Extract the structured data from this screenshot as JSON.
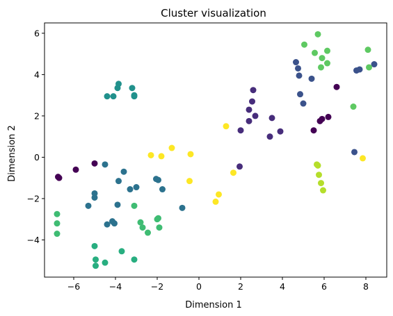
{
  "chart_data": {
    "type": "scatter",
    "title": "Cluster visualization",
    "xlabel": "Dimension 1",
    "ylabel": "Dimension 2",
    "xlim": [
      -7.4,
      9.0
    ],
    "ylim": [
      -5.8,
      6.5
    ],
    "xticks": [
      -6,
      -4,
      -2,
      0,
      2,
      4,
      6,
      8
    ],
    "yticks": [
      -4,
      -2,
      0,
      2,
      4,
      6
    ],
    "grid": false,
    "legend": "none",
    "clusters": [
      {
        "color": "#440154",
        "points": [
          [
            -6.7,
            -1.0
          ],
          [
            -6.75,
            -0.95
          ],
          [
            -5.9,
            -0.6
          ],
          [
            -5.0,
            -0.3
          ],
          [
            5.5,
            1.3
          ],
          [
            5.8,
            1.75
          ],
          [
            5.9,
            1.85
          ],
          [
            6.2,
            1.95
          ],
          [
            6.6,
            3.4
          ]
        ]
      },
      {
        "color": "#472d7b",
        "points": [
          [
            2.6,
            3.25
          ],
          [
            2.55,
            2.7
          ],
          [
            2.7,
            2.0
          ],
          [
            2.4,
            2.3
          ],
          [
            2.4,
            1.75
          ],
          [
            2.0,
            1.3
          ],
          [
            3.4,
            1.0
          ],
          [
            3.9,
            1.25
          ],
          [
            3.5,
            1.9
          ],
          [
            1.95,
            -0.45
          ]
        ]
      },
      {
        "color": "#3b528b",
        "points": [
          [
            4.65,
            4.6
          ],
          [
            4.75,
            4.3
          ],
          [
            4.8,
            3.95
          ],
          [
            4.85,
            3.05
          ],
          [
            5.0,
            2.6
          ],
          [
            5.4,
            3.8
          ],
          [
            7.55,
            4.2
          ],
          [
            7.7,
            4.25
          ],
          [
            8.4,
            4.5
          ],
          [
            7.45,
            0.25
          ]
        ]
      },
      {
        "color": "#2c728e",
        "points": [
          [
            -4.5,
            -0.35
          ],
          [
            -3.6,
            -0.7
          ],
          [
            -3.85,
            -1.15
          ],
          [
            -3.3,
            -1.55
          ],
          [
            -3.0,
            -1.45
          ],
          [
            -1.95,
            -1.1
          ],
          [
            -2.05,
            -1.05
          ],
          [
            -1.75,
            -1.55
          ],
          [
            -0.8,
            -2.45
          ],
          [
            -5.0,
            -1.75
          ],
          [
            -5.0,
            -1.95
          ],
          [
            -5.3,
            -2.35
          ],
          [
            -3.9,
            -2.3
          ],
          [
            -4.4,
            -3.25
          ],
          [
            -4.15,
            -3.1
          ],
          [
            -4.05,
            -3.2
          ]
        ]
      },
      {
        "color": "#21918c",
        "points": [
          [
            -4.4,
            2.95
          ],
          [
            -4.1,
            2.95
          ],
          [
            -3.9,
            3.35
          ],
          [
            -3.85,
            3.55
          ],
          [
            -3.2,
            3.35
          ],
          [
            -3.1,
            2.95
          ],
          [
            -3.1,
            3.0
          ]
        ]
      },
      {
        "color": "#28ae80",
        "points": [
          [
            -5.0,
            -4.3
          ],
          [
            -4.95,
            -4.95
          ],
          [
            -4.95,
            -5.25
          ],
          [
            -4.5,
            -5.1
          ],
          [
            -3.7,
            -4.55
          ],
          [
            -3.1,
            -4.95
          ]
        ]
      },
      {
        "color": "#3fbc73",
        "points": [
          [
            -6.8,
            -2.75
          ],
          [
            -6.8,
            -3.2
          ],
          [
            -6.8,
            -3.7
          ],
          [
            -3.1,
            -2.35
          ],
          [
            -2.8,
            -3.15
          ],
          [
            -2.7,
            -3.4
          ],
          [
            -2.45,
            -3.65
          ],
          [
            -2.0,
            -3.0
          ],
          [
            -1.95,
            -2.95
          ],
          [
            -1.9,
            -3.4
          ]
        ]
      },
      {
        "color": "#5ec962",
        "points": [
          [
            5.05,
            5.45
          ],
          [
            5.7,
            5.95
          ],
          [
            5.55,
            5.05
          ],
          [
            5.9,
            4.8
          ],
          [
            5.85,
            4.35
          ],
          [
            6.15,
            5.15
          ],
          [
            6.15,
            4.55
          ],
          [
            8.1,
            5.2
          ],
          [
            8.15,
            4.35
          ],
          [
            7.4,
            2.45
          ]
        ]
      },
      {
        "color": "#b5de2b",
        "points": [
          [
            5.65,
            -0.35
          ],
          [
            5.7,
            -0.4
          ],
          [
            5.75,
            -0.85
          ],
          [
            5.85,
            -1.25
          ],
          [
            5.95,
            -1.6
          ]
        ]
      },
      {
        "color": "#fde725",
        "points": [
          [
            -2.3,
            0.1
          ],
          [
            -1.8,
            0.05
          ],
          [
            -1.3,
            0.45
          ],
          [
            -0.4,
            0.15
          ],
          [
            -0.45,
            -1.15
          ],
          [
            1.3,
            1.5
          ],
          [
            1.65,
            -0.75
          ],
          [
            0.95,
            -1.8
          ],
          [
            0.8,
            -2.15
          ],
          [
            7.85,
            -0.05
          ]
        ]
      }
    ]
  }
}
